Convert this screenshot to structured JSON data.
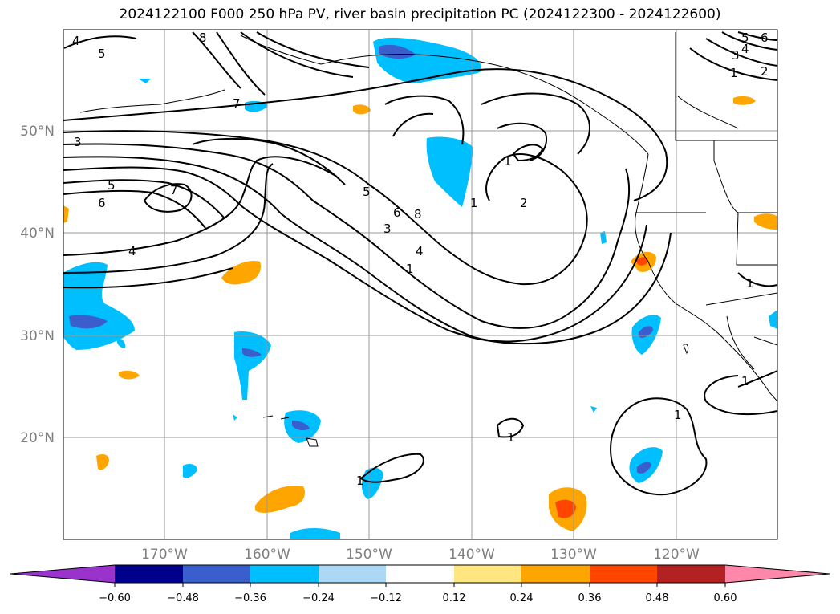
{
  "title": "2024122100 F000 250 hPa PV, river basin precipitation PC (2024122300 - 2024122600)",
  "map": {
    "lat_labels": [
      "50°N",
      "40°N",
      "30°N",
      "20°N"
    ],
    "lon_labels": [
      "170°W",
      "160°W",
      "150°W",
      "140°W",
      "130°W",
      "120°W"
    ],
    "contour_labels": [
      "4",
      "5",
      "8",
      "7",
      "3",
      "5",
      "6",
      "7",
      "4",
      "5",
      "6",
      "8",
      "3",
      "4",
      "1",
      "1",
      "2",
      "1",
      "3",
      "4",
      "5",
      "6",
      "2",
      "1",
      "1",
      "1",
      "1",
      "1",
      "1"
    ]
  },
  "colorbar": {
    "ticks": [
      "−0.60",
      "−0.48",
      "−0.36",
      "−0.24",
      "−0.12",
      "0.12",
      "0.24",
      "0.36",
      "0.48",
      "0.60"
    ],
    "colors": [
      "#9933cc",
      "#00008b",
      "#3a5fcd",
      "#00bfff",
      "#add8f5",
      "#ffffff",
      "#ffe680",
      "#ffa500",
      "#ff4500",
      "#b22222",
      "#ff88aa"
    ]
  },
  "colors": {
    "contour": "#000000",
    "grid": "#999999",
    "coast": "#000000"
  }
}
